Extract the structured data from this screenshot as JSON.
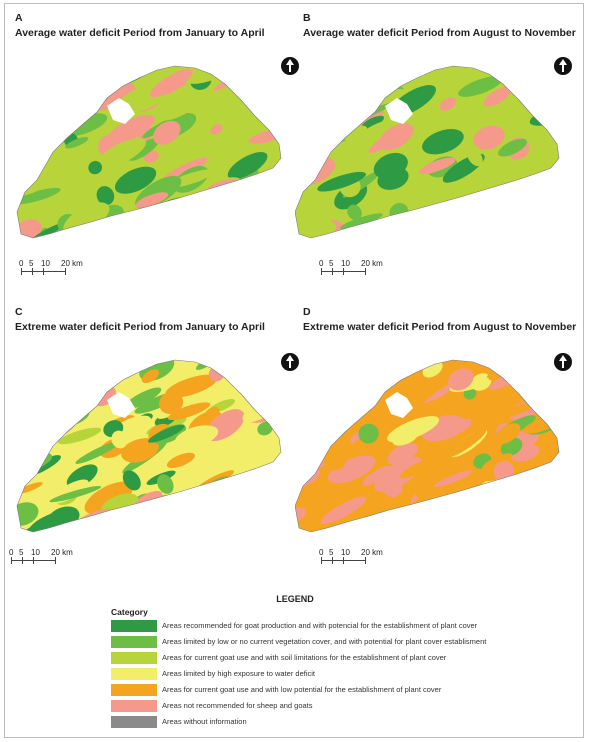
{
  "panels": [
    {
      "letter": "A",
      "title": "Average water deficit Period from January to April",
      "palette": "a"
    },
    {
      "letter": "B",
      "title": "Average water deficit Period from August to November",
      "palette": "b"
    },
    {
      "letter": "C",
      "title": "Extreme water deficit Period from January to April",
      "palette": "c"
    },
    {
      "letter": "D",
      "title": "Extreme water deficit Period from August to November",
      "palette": "d"
    }
  ],
  "scale_bar": {
    "labels": [
      "0",
      "5",
      "10",
      "20 km"
    ]
  },
  "legend": {
    "title": "LEGEND",
    "category_label": "Category",
    "items": [
      {
        "label": "Areas recommended for goat production and with potencial for the establishment of plant cover",
        "color": "#2e9a44"
      },
      {
        "label": "Areas limited by low or no current vegetation cover, and with potential for plant cover establisment",
        "color": "#6cbe45"
      },
      {
        "label": "Areas for current goat use and with soil limitations for the establishment of plant cover",
        "color": "#b7d43a"
      },
      {
        "label": "Areas limited by high exposure to water deficit",
        "color": "#f3ee6a"
      },
      {
        "label": "Areas for current goat use and with low potential for the establishment of plant cover",
        "color": "#f4a41e"
      },
      {
        "label": "Areas not recommended for sheep and goats",
        "color": "#f59a8a"
      },
      {
        "label": "Areas without information",
        "color": "#8a8a8a"
      }
    ]
  }
}
